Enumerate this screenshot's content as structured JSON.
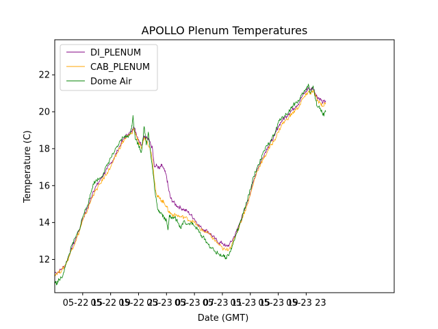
{
  "chart_data": {
    "type": "line",
    "title": "APOLLO Plenum Temperatures",
    "xlabel": "Date (GMT)",
    "ylabel": "Temperature (C)",
    "xlim": [
      0,
      48.6
    ],
    "ylim": [
      10.2,
      23.9
    ],
    "x_unit": "hours since 05-22 11:00 GMT",
    "xticks": [
      {
        "value": 4,
        "label": "05-22 15"
      },
      {
        "value": 8,
        "label": "05-22 19"
      },
      {
        "value": 12,
        "label": "05-22 23"
      },
      {
        "value": 16,
        "label": "05-23 03"
      },
      {
        "value": 20,
        "label": "05-23 07"
      },
      {
        "value": 24,
        "label": "05-23 11"
      },
      {
        "value": 28,
        "label": "05-23 15"
      },
      {
        "value": 32,
        "label": "05-23 19"
      },
      {
        "value": 36,
        "label": "05-23 23"
      }
    ],
    "yticks": [
      {
        "value": 12,
        "label": "12"
      },
      {
        "value": 14,
        "label": "14"
      },
      {
        "value": 16,
        "label": "16"
      },
      {
        "value": 18,
        "label": "18"
      },
      {
        "value": 20,
        "label": "20"
      },
      {
        "value": 22,
        "label": "22"
      }
    ],
    "legend_position": "top-left",
    "series": [
      {
        "name": "DI_PLENUM",
        "color": "#800080",
        "points": [
          [
            0,
            11.3
          ],
          [
            0.5,
            11.3
          ],
          [
            1,
            11.5
          ],
          [
            1.5,
            11.7
          ],
          [
            2,
            12.2
          ],
          [
            2.5,
            12.7
          ],
          [
            3,
            13.1
          ],
          [
            3.5,
            13.6
          ],
          [
            4,
            14.2
          ],
          [
            4.5,
            14.6
          ],
          [
            5,
            15.1
          ],
          [
            5.5,
            15.7
          ],
          [
            6,
            16.0
          ],
          [
            6.5,
            16.3
          ],
          [
            7,
            16.6
          ],
          [
            7.5,
            16.9
          ],
          [
            8,
            17.2
          ],
          [
            8.5,
            17.5
          ],
          [
            9,
            17.9
          ],
          [
            9.5,
            18.3
          ],
          [
            10,
            18.6
          ],
          [
            10.5,
            18.8
          ],
          [
            11,
            18.9
          ],
          [
            11.3,
            19.2
          ],
          [
            11.6,
            18.9
          ],
          [
            12,
            18.5
          ],
          [
            12.4,
            18.2
          ],
          [
            12.8,
            18.7
          ],
          [
            13.2,
            18.6
          ],
          [
            13.6,
            18.4
          ],
          [
            14,
            18.0
          ],
          [
            14.3,
            17.0
          ],
          [
            14.6,
            17.1
          ],
          [
            15,
            16.9
          ],
          [
            15.3,
            17.1
          ],
          [
            15.6,
            16.9
          ],
          [
            16,
            16.5
          ],
          [
            16.3,
            15.8
          ],
          [
            16.6,
            15.3
          ],
          [
            17,
            15.1
          ],
          [
            17.5,
            14.9
          ],
          [
            18,
            14.8
          ],
          [
            18.5,
            14.7
          ],
          [
            19,
            14.6
          ],
          [
            19.5,
            14.4
          ],
          [
            20,
            14.2
          ],
          [
            20.5,
            13.9
          ],
          [
            21,
            13.7
          ],
          [
            21.5,
            13.6
          ],
          [
            22,
            13.5
          ],
          [
            22.5,
            13.3
          ],
          [
            23,
            13.1
          ],
          [
            23.5,
            12.9
          ],
          [
            24,
            12.9
          ],
          [
            24.5,
            12.7
          ],
          [
            25,
            12.8
          ],
          [
            25.5,
            13.1
          ],
          [
            26,
            13.5
          ],
          [
            26.5,
            14.0
          ],
          [
            27,
            14.5
          ],
          [
            27.5,
            15.0
          ],
          [
            28,
            15.6
          ],
          [
            28.5,
            16.3
          ],
          [
            29,
            16.9
          ],
          [
            29.5,
            17.3
          ],
          [
            30,
            17.7
          ],
          [
            30.5,
            18.1
          ],
          [
            31,
            18.4
          ],
          [
            31.5,
            18.7
          ],
          [
            32,
            19.2
          ],
          [
            32.5,
            19.5
          ],
          [
            33,
            19.7
          ],
          [
            33.5,
            19.9
          ],
          [
            34,
            20.1
          ],
          [
            34.5,
            20.3
          ],
          [
            35,
            20.5
          ],
          [
            35.5,
            20.9
          ],
          [
            36,
            21.1
          ],
          [
            36.3,
            21.3
          ],
          [
            36.6,
            21.2
          ],
          [
            37,
            21.3
          ],
          [
            37.3,
            21.0
          ],
          [
            37.6,
            20.8
          ],
          [
            38,
            20.7
          ],
          [
            38.4,
            20.5
          ],
          [
            38.8,
            20.6
          ]
        ]
      },
      {
        "name": "CAB_PLENUM",
        "color": "#ffa500",
        "points": [
          [
            0,
            11.2
          ],
          [
            0.5,
            11.3
          ],
          [
            1,
            11.4
          ],
          [
            1.5,
            11.7
          ],
          [
            2,
            12.1
          ],
          [
            2.5,
            12.6
          ],
          [
            3,
            13.0
          ],
          [
            3.5,
            13.5
          ],
          [
            4,
            14.1
          ],
          [
            4.5,
            14.5
          ],
          [
            5,
            15.0
          ],
          [
            5.5,
            15.5
          ],
          [
            6,
            15.8
          ],
          [
            6.5,
            16.1
          ],
          [
            7,
            16.4
          ],
          [
            7.5,
            16.7
          ],
          [
            8,
            17.0
          ],
          [
            8.5,
            17.4
          ],
          [
            9,
            17.8
          ],
          [
            9.5,
            18.2
          ],
          [
            10,
            18.5
          ],
          [
            10.5,
            18.7
          ],
          [
            11,
            18.8
          ],
          [
            11.3,
            19.1
          ],
          [
            11.6,
            18.8
          ],
          [
            12,
            18.3
          ],
          [
            12.4,
            18.0
          ],
          [
            12.8,
            18.6
          ],
          [
            13.2,
            18.4
          ],
          [
            13.6,
            18.1
          ],
          [
            14,
            17.4
          ],
          [
            14.3,
            16.2
          ],
          [
            14.6,
            15.5
          ],
          [
            15,
            15.3
          ],
          [
            15.3,
            15.2
          ],
          [
            15.6,
            15.1
          ],
          [
            16,
            14.9
          ],
          [
            16.3,
            14.6
          ],
          [
            16.6,
            14.5
          ],
          [
            17,
            14.4
          ],
          [
            17.5,
            14.4
          ],
          [
            18,
            14.3
          ],
          [
            18.5,
            14.3
          ],
          [
            19,
            14.2
          ],
          [
            19.5,
            14.1
          ],
          [
            20,
            14.0
          ],
          [
            20.5,
            13.8
          ],
          [
            21,
            13.6
          ],
          [
            21.5,
            13.5
          ],
          [
            22,
            13.4
          ],
          [
            22.5,
            13.2
          ],
          [
            23,
            13.0
          ],
          [
            23.5,
            12.8
          ],
          [
            24,
            12.6
          ],
          [
            24.5,
            12.5
          ],
          [
            25,
            12.6
          ],
          [
            25.5,
            12.9
          ],
          [
            26,
            13.4
          ],
          [
            26.5,
            13.9
          ],
          [
            27,
            14.4
          ],
          [
            27.5,
            14.9
          ],
          [
            28,
            15.5
          ],
          [
            28.5,
            16.2
          ],
          [
            29,
            16.8
          ],
          [
            29.5,
            17.2
          ],
          [
            30,
            17.5
          ],
          [
            30.5,
            17.9
          ],
          [
            31,
            18.2
          ],
          [
            31.5,
            18.5
          ],
          [
            32,
            18.9
          ],
          [
            32.5,
            19.3
          ],
          [
            33,
            19.5
          ],
          [
            33.5,
            19.7
          ],
          [
            34,
            19.9
          ],
          [
            34.5,
            20.1
          ],
          [
            35,
            20.3
          ],
          [
            35.5,
            20.7
          ],
          [
            36,
            20.9
          ],
          [
            36.3,
            21.1
          ],
          [
            36.6,
            21.0
          ],
          [
            37,
            21.1
          ],
          [
            37.3,
            20.9
          ],
          [
            37.6,
            20.6
          ],
          [
            38,
            20.5
          ],
          [
            38.4,
            20.3
          ],
          [
            38.8,
            20.5
          ]
        ]
      },
      {
        "name": "Dome Air",
        "color": "#008000",
        "points": [
          [
            0,
            10.8
          ],
          [
            0.3,
            10.7
          ],
          [
            0.6,
            10.9
          ],
          [
            1,
            11.0
          ],
          [
            1.5,
            11.6
          ],
          [
            2,
            12.2
          ],
          [
            2.5,
            12.8
          ],
          [
            3,
            13.2
          ],
          [
            3.5,
            13.6
          ],
          [
            4,
            14.3
          ],
          [
            4.5,
            14.8
          ],
          [
            5,
            15.3
          ],
          [
            5.5,
            16.1
          ],
          [
            6,
            16.3
          ],
          [
            6.5,
            16.4
          ],
          [
            7,
            16.7
          ],
          [
            7.5,
            17.1
          ],
          [
            8,
            17.5
          ],
          [
            8.5,
            17.8
          ],
          [
            9,
            18.1
          ],
          [
            9.5,
            18.5
          ],
          [
            10,
            18.7
          ],
          [
            10.5,
            18.6
          ],
          [
            11,
            19.1
          ],
          [
            11.2,
            19.8
          ],
          [
            11.5,
            18.6
          ],
          [
            12,
            18.2
          ],
          [
            12.4,
            17.8
          ],
          [
            12.8,
            19.2
          ],
          [
            13.1,
            18.2
          ],
          [
            13.4,
            18.9
          ],
          [
            13.8,
            17.5
          ],
          [
            14.1,
            16.6
          ],
          [
            14.4,
            15.5
          ],
          [
            14.7,
            14.8
          ],
          [
            15,
            14.6
          ],
          [
            15.3,
            14.5
          ],
          [
            15.6,
            14.3
          ],
          [
            16,
            14.1
          ],
          [
            16.2,
            13.6
          ],
          [
            16.4,
            14.4
          ],
          [
            16.8,
            14.2
          ],
          [
            17.2,
            14.3
          ],
          [
            17.6,
            14.0
          ],
          [
            18,
            13.7
          ],
          [
            18.5,
            14.1
          ],
          [
            19,
            13.9
          ],
          [
            19.5,
            14.0
          ],
          [
            20,
            13.8
          ],
          [
            20.5,
            13.6
          ],
          [
            21,
            13.3
          ],
          [
            21.5,
            13.1
          ],
          [
            22,
            12.8
          ],
          [
            22.5,
            12.6
          ],
          [
            23,
            12.4
          ],
          [
            23.5,
            12.3
          ],
          [
            24,
            12.2
          ],
          [
            24.5,
            12.1
          ],
          [
            25,
            12.3
          ],
          [
            25.5,
            12.8
          ],
          [
            26,
            13.4
          ],
          [
            26.5,
            13.9
          ],
          [
            27,
            14.5
          ],
          [
            27.5,
            15.1
          ],
          [
            28,
            15.8
          ],
          [
            28.5,
            16.5
          ],
          [
            29,
            17.0
          ],
          [
            29.5,
            17.4
          ],
          [
            30,
            17.9
          ],
          [
            30.5,
            18.2
          ],
          [
            31,
            18.5
          ],
          [
            31.5,
            18.8
          ],
          [
            32,
            19.4
          ],
          [
            32.5,
            19.7
          ],
          [
            33,
            19.8
          ],
          [
            33.5,
            20.0
          ],
          [
            34,
            20.3
          ],
          [
            34.5,
            20.5
          ],
          [
            35,
            20.6
          ],
          [
            35.5,
            21.0
          ],
          [
            36,
            21.2
          ],
          [
            36.3,
            21.5
          ],
          [
            36.6,
            21.0
          ],
          [
            37,
            21.4
          ],
          [
            37.3,
            20.7
          ],
          [
            37.6,
            20.3
          ],
          [
            38,
            20.2
          ],
          [
            38.4,
            19.8
          ],
          [
            38.8,
            20.0
          ]
        ]
      }
    ]
  }
}
